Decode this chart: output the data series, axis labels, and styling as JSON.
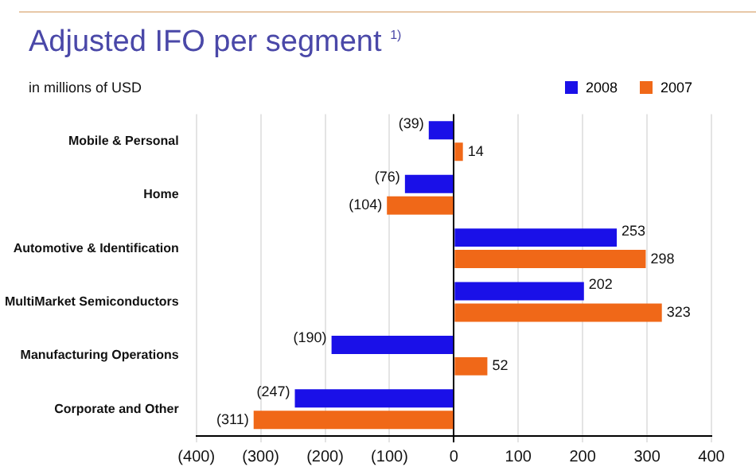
{
  "chart_data": {
    "type": "bar",
    "orientation": "horizontal",
    "title": "Adjusted IFO per segment $^{1)}$",
    "subtitle": "in millions of USD",
    "categories": [
      "Mobile & Personal",
      "Home",
      "Automotive & Identification",
      "MultiMarket Semiconductors",
      "Manufacturing Operations",
      "Corporate and Other"
    ],
    "series": [
      {
        "name": "2008",
        "color": "#1a10e8",
        "values": [
          -39,
          -76,
          253,
          202,
          -190,
          -247
        ],
        "value_labels": [
          "(39)",
          "(76)",
          "253",
          "202",
          "(190)",
          "(247)"
        ]
      },
      {
        "name": "2007",
        "color": "#f06818",
        "values": [
          14,
          -104,
          298,
          323,
          52,
          -311
        ],
        "value_labels": [
          "14",
          "(104)",
          "298",
          "323",
          "52",
          "(311)"
        ]
      }
    ],
    "xlim": [
      -400,
      400
    ],
    "xticks": [
      {
        "value": -400,
        "label": "(400)"
      },
      {
        "value": -300,
        "label": "(300)"
      },
      {
        "value": -200,
        "label": "(200)"
      },
      {
        "value": -100,
        "label": "(100)"
      },
      0,
      100,
      200,
      300,
      400
    ],
    "grid": "x",
    "legend": "top right"
  }
}
